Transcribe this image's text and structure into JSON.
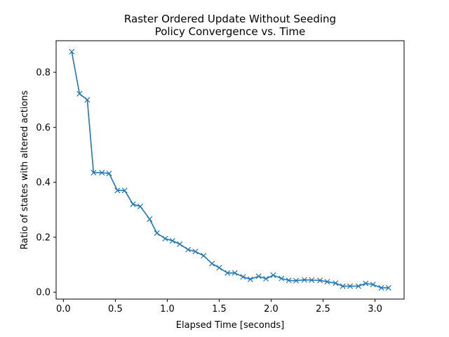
{
  "chart_data": {
    "type": "line",
    "title_lines": [
      "Raster Ordered Update Without Seeding",
      "Policy Convergence vs. Time"
    ],
    "xlabel": "Elapsed Time [seconds]",
    "ylabel": "Ratio of states with altered actions",
    "xlim": [
      -0.07,
      3.28
    ],
    "ylim": [
      -0.025,
      0.915
    ],
    "xticks": [
      0.0,
      0.5,
      1.0,
      1.5,
      2.0,
      2.5,
      3.0
    ],
    "xtick_labels": [
      "0.0",
      "0.5",
      "1.0",
      "1.5",
      "2.0",
      "2.5",
      "3.0"
    ],
    "yticks": [
      0.0,
      0.2,
      0.4,
      0.6,
      0.8
    ],
    "ytick_labels": [
      "0.0",
      "0.2",
      "0.4",
      "0.6",
      "0.8"
    ],
    "grid": false,
    "marker": "x",
    "color": "#1f77b4",
    "series": [
      {
        "x": [
          0.08,
          0.155,
          0.23,
          0.29,
          0.37,
          0.44,
          0.52,
          0.59,
          0.67,
          0.74,
          0.83,
          0.9,
          0.98,
          1.05,
          1.12,
          1.2,
          1.27,
          1.35,
          1.43,
          1.5,
          1.58,
          1.65,
          1.73,
          1.8,
          1.88,
          1.95,
          2.02,
          2.1,
          2.17,
          2.24,
          2.32,
          2.39,
          2.47,
          2.54,
          2.62,
          2.69,
          2.76,
          2.84,
          2.91,
          2.98,
          3.06,
          3.13
        ],
        "y": [
          0.875,
          0.722,
          0.7,
          0.435,
          0.435,
          0.432,
          0.37,
          0.37,
          0.32,
          0.312,
          0.266,
          0.215,
          0.195,
          0.187,
          0.175,
          0.155,
          0.148,
          0.133,
          0.104,
          0.089,
          0.07,
          0.07,
          0.056,
          0.047,
          0.058,
          0.049,
          0.062,
          0.05,
          0.043,
          0.042,
          0.045,
          0.044,
          0.043,
          0.038,
          0.033,
          0.022,
          0.022,
          0.022,
          0.032,
          0.028,
          0.016,
          0.016
        ]
      }
    ]
  }
}
